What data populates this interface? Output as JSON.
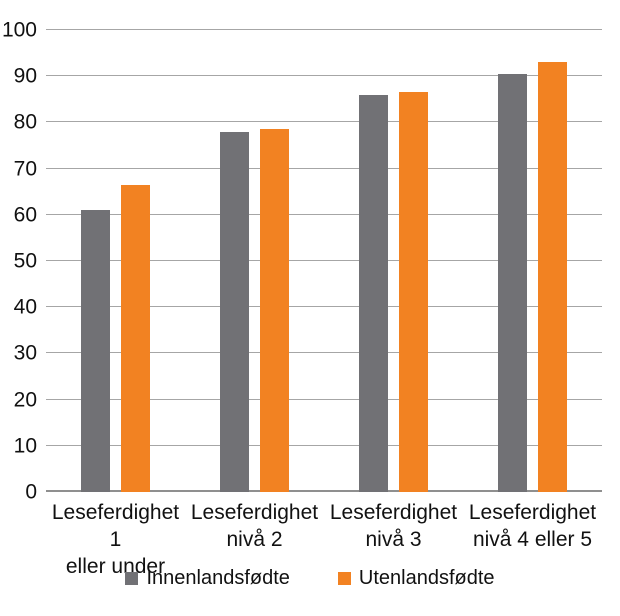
{
  "chart_data": {
    "type": "bar",
    "title": "",
    "xlabel": "",
    "ylabel": "",
    "categories": [
      {
        "lines": [
          "Leseferdighet 1",
          "eller under"
        ]
      },
      {
        "lines": [
          "Leseferdighet",
          "nivå 2"
        ]
      },
      {
        "lines": [
          "Leseferdighet",
          "nivå 3"
        ]
      },
      {
        "lines": [
          "Leseferdighet",
          "nivå 4 eller 5"
        ]
      }
    ],
    "series": [
      {
        "name": "Innenlandsfødte",
        "color": "#717175",
        "values": [
          61,
          78,
          86,
          90.5
        ]
      },
      {
        "name": "Utenlandsfødte",
        "color": "#F28222",
        "values": [
          66.5,
          78.5,
          86.5,
          93
        ]
      }
    ],
    "ylim": [
      0,
      100
    ],
    "yticks": [
      0,
      10,
      20,
      30,
      40,
      50,
      60,
      70,
      80,
      90,
      100
    ],
    "grid": true,
    "legend_position": "bottom"
  },
  "colors": {
    "gridline": "#A6A6A6",
    "baseline": "#8F8F8F",
    "text": "#111111",
    "background": "#FFFFFF"
  }
}
